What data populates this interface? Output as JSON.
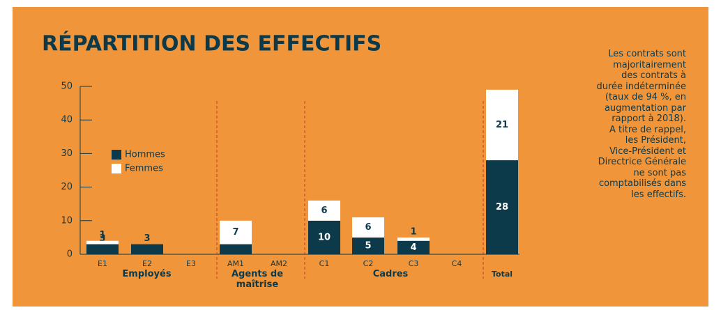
{
  "chart_data": {
    "type": "bar",
    "stacked": true,
    "title": "RÉPARTITION DES EFFECTIFS",
    "categories": [
      "E1",
      "E2",
      "E3",
      "AM1",
      "AM2",
      "C1",
      "C2",
      "C3",
      "C4",
      "Total"
    ],
    "groups": [
      {
        "name": "Employés",
        "from": 0,
        "to": 2
      },
      {
        "name": "Agents de maîtrise",
        "from": 3,
        "to": 4
      },
      {
        "name": "Cadres",
        "from": 5,
        "to": 8
      }
    ],
    "series": [
      {
        "name": "Hommes",
        "color": "#0d3a4a",
        "values": [
          3,
          3,
          null,
          3,
          null,
          10,
          5,
          4,
          null,
          28
        ]
      },
      {
        "name": "Femmes",
        "color": "#ffffff",
        "values": [
          1,
          null,
          null,
          7,
          null,
          6,
          6,
          1,
          null,
          21
        ]
      }
    ],
    "ylim": [
      0,
      50
    ],
    "yticks": [
      0,
      10,
      20,
      30,
      40,
      50
    ],
    "note": [
      "Les contrats sont",
      "majoritairement",
      "des contrats à",
      "durée indéterminée",
      "(taux de 94 %, en",
      "augmentation par",
      "rapport à 2018).",
      "A titre de rappel,",
      "les Président,",
      "Vice-Président et",
      "Directrice Générale",
      "ne sont pas",
      "comptabilisés dans",
      "les effectifs."
    ]
  }
}
